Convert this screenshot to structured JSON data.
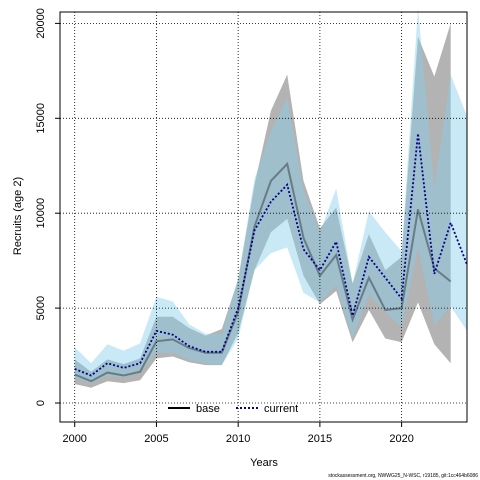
{
  "chart_data": {
    "type": "line",
    "xlabel": "Years",
    "ylabel": "Recruits (age 2)",
    "xlim": [
      1999.1,
      2024
    ],
    "ylim": [
      -1000,
      20600
    ],
    "x_ticks": [
      2000,
      2005,
      2010,
      2015,
      2020
    ],
    "y_ticks": [
      0,
      5000,
      10000,
      15000,
      20000
    ],
    "grid": true,
    "legend_position": "bottom-center",
    "footnote": "stockassessment.org, NWWG25_N-WSC, r19185, git:1cc464b6086",
    "x": [
      2000,
      2001,
      2002,
      2003,
      2004,
      2005,
      2006,
      2007,
      2008,
      2009,
      2010,
      2011,
      2012,
      2013,
      2014,
      2015,
      2016,
      2017,
      2018,
      2019,
      2020,
      2021,
      2022,
      2023,
      2024
    ],
    "series": [
      {
        "name": "base",
        "color": "#000000",
        "line_style": "solid",
        "band_color": "#808080",
        "values": [
          1500,
          1150,
          1600,
          1450,
          1650,
          3250,
          3350,
          2900,
          2650,
          2650,
          4800,
          9300,
          11700,
          12600,
          8700,
          6700,
          7800,
          4400,
          6600,
          4900,
          5000,
          10200,
          7100,
          6400,
          null
        ],
        "lower": [
          1000,
          800,
          1150,
          1050,
          1200,
          2350,
          2450,
          2150,
          2000,
          2000,
          3700,
          7000,
          9000,
          9700,
          6700,
          5200,
          5900,
          3200,
          4900,
          3400,
          3200,
          5300,
          3100,
          2100,
          null
        ],
        "upper": [
          2300,
          1650,
          2300,
          2050,
          2350,
          4550,
          4550,
          3950,
          3550,
          3900,
          6500,
          11500,
          15400,
          17300,
          11700,
          9200,
          10300,
          6300,
          8900,
          7000,
          7700,
          19300,
          17200,
          20000,
          null
        ]
      },
      {
        "name": "current",
        "color": "#00008b",
        "line_style": "dotted",
        "band_color": "#87ceeb",
        "values": [
          1800,
          1450,
          2100,
          1850,
          2100,
          3800,
          3600,
          3000,
          2700,
          2700,
          5000,
          9100,
          10600,
          11500,
          8100,
          7000,
          8500,
          4600,
          7700,
          6600,
          5500,
          14200,
          6800,
          9500,
          7300
        ],
        "lower": [
          1300,
          1050,
          1450,
          1350,
          1600,
          2650,
          2650,
          2250,
          2100,
          2000,
          3400,
          7000,
          7900,
          8200,
          5800,
          5300,
          6200,
          3400,
          5700,
          4800,
          4000,
          8200,
          4100,
          5100,
          3800
        ],
        "upper": [
          2950,
          2100,
          3100,
          2750,
          3150,
          5600,
          5350,
          4150,
          3650,
          3650,
          6600,
          11800,
          14300,
          16100,
          11200,
          9000,
          11300,
          6300,
          10100,
          9000,
          8000,
          20800,
          11300,
          17300,
          15100
        ]
      }
    ]
  }
}
